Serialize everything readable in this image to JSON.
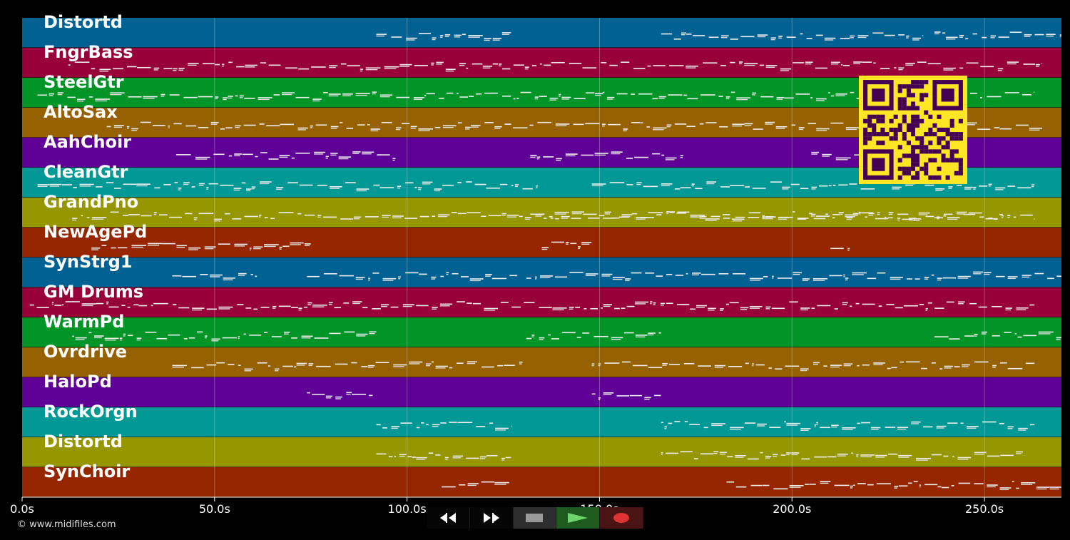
{
  "tracks": [
    {
      "name": "Distortd",
      "color": "#016193"
    },
    {
      "name": "FngrBass",
      "color": "#98003a"
    },
    {
      "name": "SteelGtr",
      "color": "#019528"
    },
    {
      "name": "AltoSax",
      "color": "#966100"
    },
    {
      "name": "AahChoir",
      "color": "#5f0096"
    },
    {
      "name": "CleanGtr",
      "color": "#019896"
    },
    {
      "name": "GrandPno",
      "color": "#969600"
    },
    {
      "name": "NewAgePd",
      "color": "#952600"
    },
    {
      "name": "SynStrg1",
      "color": "#016193"
    },
    {
      "name": "GM Drums",
      "color": "#98003a"
    },
    {
      "name": "WarmPd",
      "color": "#019528"
    },
    {
      "name": "Ovrdrive",
      "color": "#966100"
    },
    {
      "name": "HaloPd",
      "color": "#5f0096"
    },
    {
      "name": "RockOrgn",
      "color": "#019896"
    },
    {
      "name": "Distortd",
      "color": "#969600"
    },
    {
      "name": "SynChoir",
      "color": "#952600"
    }
  ],
  "timeline": {
    "ticks": [
      "0.0s",
      "50.0s",
      "100.0s",
      "150.0s",
      "200.0s",
      "250.0s"
    ],
    "tick_values": [
      0,
      50,
      100,
      150,
      200,
      250
    ],
    "max_seconds": 270
  },
  "copyright": "© www.midifiles.com",
  "controls": {
    "rewind": "rewind-icon",
    "fast_forward": "fast-forward-icon",
    "stop": "stop-icon",
    "play": "play-icon",
    "record": "record-icon"
  },
  "qr_colors": {
    "fg": "#440154",
    "bg": "#fde725"
  }
}
